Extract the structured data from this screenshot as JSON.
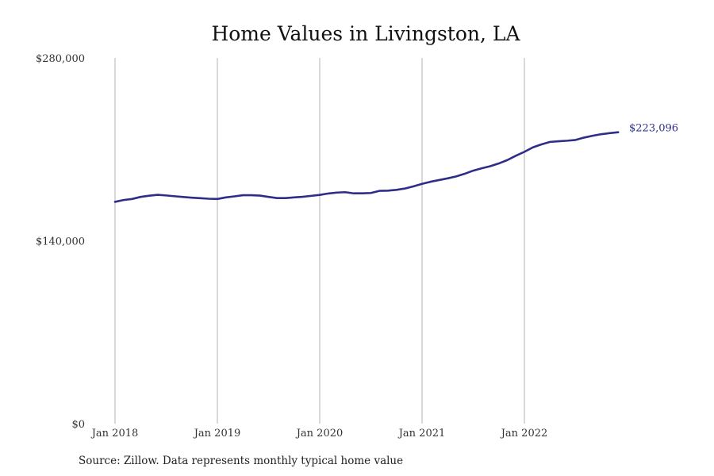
{
  "chart_data": {
    "type": "line",
    "title": "Home Values in Livingston, LA",
    "xlabel": "",
    "ylabel": "",
    "x_ticks": [
      "Jan 2018",
      "Jan 2019",
      "Jan 2020",
      "Jan 2021",
      "Jan 2022"
    ],
    "y_ticks": [
      "$0",
      "$140,000",
      "$280,000"
    ],
    "ylim": [
      0,
      280000
    ],
    "xlim": [
      "2018-01",
      "2022-12"
    ],
    "grid": "vertical",
    "end_label": "$223,096",
    "source": "Source: Zillow. Data represents monthly typical home value",
    "line_color": "#2e2d88",
    "series": [
      {
        "x": [
          "2018-01",
          "2018-02",
          "2018-03",
          "2018-04",
          "2018-05",
          "2018-06",
          "2018-07",
          "2018-08",
          "2018-09",
          "2018-10",
          "2018-11",
          "2018-12",
          "2019-01",
          "2019-02",
          "2019-03",
          "2019-04",
          "2019-05",
          "2019-06",
          "2019-07",
          "2019-08",
          "2019-09",
          "2019-10",
          "2019-11",
          "2019-12",
          "2020-01",
          "2020-02",
          "2020-03",
          "2020-04",
          "2020-05",
          "2020-06",
          "2020-07",
          "2020-08",
          "2020-09",
          "2020-10",
          "2020-11",
          "2020-12",
          "2021-01",
          "2021-02",
          "2021-03",
          "2021-04",
          "2021-05",
          "2021-06",
          "2021-07",
          "2021-08",
          "2021-09",
          "2021-10",
          "2021-11",
          "2021-12",
          "2022-01",
          "2022-02",
          "2022-03",
          "2022-04",
          "2022-05",
          "2022-06",
          "2022-07",
          "2022-08",
          "2022-09",
          "2022-10",
          "2022-11",
          "2022-12"
        ],
        "values": [
          169800,
          171200,
          172000,
          173600,
          174500,
          175200,
          174700,
          174100,
          173500,
          173000,
          172600,
          172200,
          172000,
          173200,
          174000,
          174900,
          174900,
          174600,
          173600,
          172700,
          172700,
          173200,
          173700,
          174400,
          175100,
          176200,
          176900,
          177200,
          176300,
          176300,
          176600,
          178200,
          178400,
          179000,
          180000,
          181700,
          183600,
          185200,
          186500,
          187800,
          189300,
          191300,
          193700,
          195500,
          197100,
          199200,
          201800,
          205100,
          208100,
          211500,
          213800,
          215700,
          216200,
          216600,
          217200,
          219000,
          220400,
          221600,
          222400,
          223096
        ]
      }
    ]
  }
}
